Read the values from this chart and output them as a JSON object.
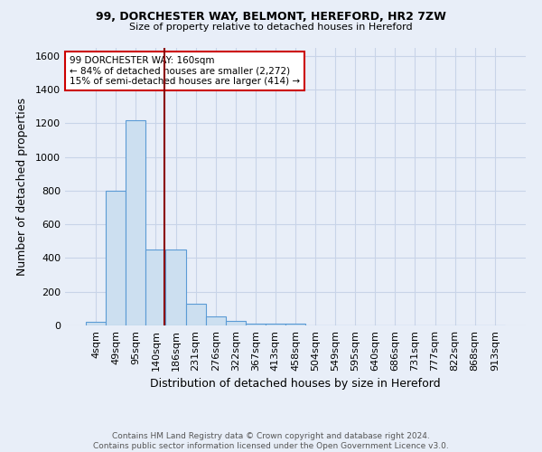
{
  "title1": "99, DORCHESTER WAY, BELMONT, HEREFORD, HR2 7ZW",
  "title2": "Size of property relative to detached houses in Hereford",
  "xlabel": "Distribution of detached houses by size in Hereford",
  "ylabel": "Number of detached properties",
  "footer1": "Contains HM Land Registry data © Crown copyright and database right 2024.",
  "footer2": "Contains public sector information licensed under the Open Government Licence v3.0.",
  "bar_labels": [
    "4sqm",
    "49sqm",
    "95sqm",
    "140sqm",
    "186sqm",
    "231sqm",
    "276sqm",
    "322sqm",
    "367sqm",
    "413sqm",
    "458sqm",
    "504sqm",
    "549sqm",
    "595sqm",
    "640sqm",
    "686sqm",
    "731sqm",
    "777sqm",
    "822sqm",
    "868sqm",
    "913sqm"
  ],
  "bar_values": [
    22,
    800,
    1220,
    450,
    450,
    130,
    55,
    25,
    12,
    12,
    12,
    0,
    0,
    0,
    0,
    0,
    0,
    0,
    0,
    0,
    0
  ],
  "bar_color": "#ccdff0",
  "bar_edge_color": "#5b9bd5",
  "grid_color": "#c8d4e8",
  "background_color": "#e8eef8",
  "vline_color": "#8b0000",
  "annotation_text": "99 DORCHESTER WAY: 160sqm\n← 84% of detached houses are smaller (2,272)\n15% of semi-detached houses are larger (414) →",
  "annotation_box_color": "white",
  "annotation_box_edge": "#cc0000",
  "ylim": [
    0,
    1650
  ],
  "yticks": [
    0,
    200,
    400,
    600,
    800,
    1000,
    1200,
    1400,
    1600
  ]
}
